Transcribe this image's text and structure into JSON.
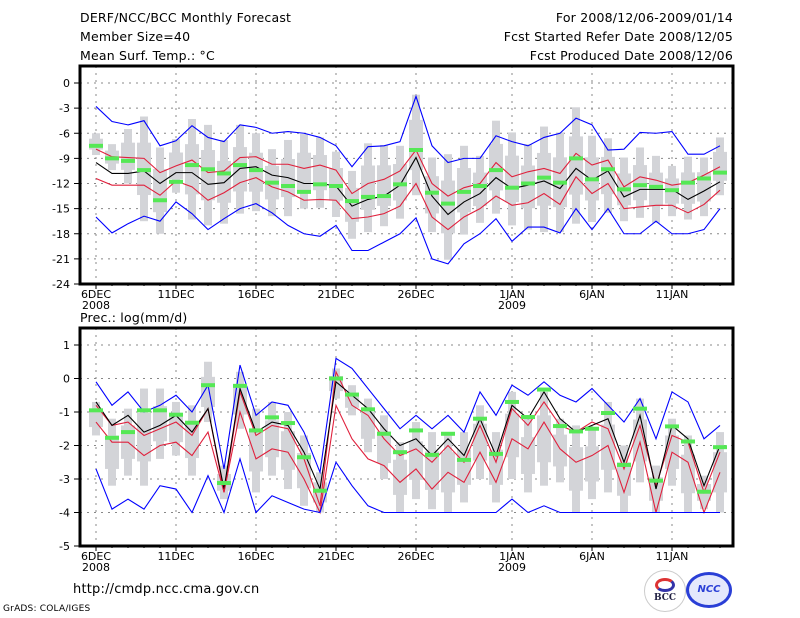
{
  "header": {
    "title": "DERF/NCC/BCC Monthly Forecast",
    "member_size": "Member Size=40",
    "variable1": "Mean Surf. Temp.: °C",
    "period": "For 2008/12/06-2009/01/14",
    "started": "Fcst Started Refer Date 2008/12/05",
    "produced": "Fcst Produced Date 2008/12/06"
  },
  "footer": {
    "url": "http://cmdp.ncc.cma.gov.cn",
    "credit": "GrADS: COLA/IGES",
    "logo1": "BCC",
    "logo2": "NCC"
  },
  "chart_data": [
    {
      "type": "line",
      "title": "Mean Surf. Temp.: °C",
      "x_ticks": [
        "6DEC",
        "11DEC",
        "16DEC",
        "21DEC",
        "26DEC",
        "1JAN",
        "6JAN",
        "11JAN"
      ],
      "x_tick_day_index": [
        0,
        5,
        10,
        15,
        20,
        26,
        31,
        36
      ],
      "x_sub_labels": [
        {
          "day_index": 0,
          "text": "2008"
        },
        {
          "day_index": 26,
          "text": "2009"
        }
      ],
      "days": 40,
      "ylim": [
        -24,
        0
      ],
      "y_ticks": [
        0,
        -3,
        -6,
        -9,
        -12,
        -15,
        -18,
        -21,
        -24
      ],
      "grid": true,
      "series": [
        {
          "name": "max",
          "color": "#0000ff",
          "values": [
            -2.8,
            -4.6,
            -5,
            -4.5,
            -7.5,
            -6.9,
            -5.1,
            -6.5,
            -7,
            -5,
            -5.3,
            -6,
            -5.8,
            -6,
            -6.5,
            -7.5,
            -10,
            -7.6,
            -7.5,
            -7,
            -1.6,
            -7.5,
            -9.5,
            -9,
            -9,
            -6.3,
            -7,
            -7.5,
            -6.5,
            -6,
            -4.2,
            -5,
            -8,
            -7.9,
            -5.9,
            -6,
            -5.8,
            -8.5,
            -8.5,
            -7.5
          ],
          "note": "upper envelope"
        },
        {
          "name": "upper-red",
          "color": "#e0203c",
          "values": [
            -7.9,
            -8.8,
            -8.9,
            -9,
            -10.7,
            -9.9,
            -9.2,
            -10.7,
            -10.5,
            -8.9,
            -8.8,
            -9.7,
            -9.7,
            -10.2,
            -9.8,
            -10.4,
            -13.2,
            -12,
            -11.5,
            -10.5,
            -8,
            -12,
            -13.5,
            -12.5,
            -12,
            -9.5,
            -11.2,
            -10.6,
            -10.2,
            -10.8,
            -8.4,
            -9.8,
            -9.2,
            -12.4,
            -11.2,
            -11.6,
            -12.2,
            -11.9,
            -11,
            -10
          ],
          "note": "upper 1-sigma"
        },
        {
          "name": "ensemble-mean",
          "color": "#000000",
          "values": [
            -9.5,
            -10.8,
            -10.8,
            -10.5,
            -12,
            -10.7,
            -10.7,
            -12.1,
            -11.9,
            -10.2,
            -10,
            -11,
            -11.3,
            -12,
            -12,
            -12.3,
            -14.7,
            -13.9,
            -13.5,
            -12.2,
            -8.9,
            -13.5,
            -15.7,
            -14.2,
            -13.2,
            -11.3,
            -12.6,
            -12.2,
            -11.7,
            -12.6,
            -10.2,
            -11.6,
            -10.5,
            -13.6,
            -12.7,
            -12.7,
            -12.7,
            -13.9,
            -12.9,
            -11.8
          ],
          "note": "ensemble mean"
        },
        {
          "name": "lower-red",
          "color": "#e0203c",
          "values": [
            -11.4,
            -12.2,
            -12.2,
            -12.2,
            -13.4,
            -11.7,
            -12.4,
            -14,
            -13.1,
            -11.9,
            -11.3,
            -12.4,
            -13,
            -14,
            -13.9,
            -14,
            -16.2,
            -16,
            -15.6,
            -14.7,
            -12,
            -16,
            -17.5,
            -16,
            -15,
            -13.5,
            -14.6,
            -14.3,
            -13.2,
            -14.5,
            -11.2,
            -13.2,
            -12,
            -15,
            -14.8,
            -14.6,
            -14.6,
            -15.5,
            -14.5,
            -12.8
          ],
          "note": "lower 1-sigma"
        },
        {
          "name": "min",
          "color": "#0000ff",
          "values": [
            -16,
            -17.9,
            -16.8,
            -15.9,
            -16.5,
            -14.2,
            -15.6,
            -17.5,
            -16.2,
            -15,
            -14.4,
            -15.5,
            -17,
            -18,
            -18.3,
            -17,
            -20,
            -20,
            -19,
            -18,
            -16.1,
            -21,
            -21.6,
            -19.2,
            -18,
            -16.2,
            -18.9,
            -17.2,
            -17.2,
            -17.9,
            -15,
            -17.5,
            -15,
            -18,
            -18,
            -16.5,
            -18,
            -18,
            -17.5,
            -15
          ],
          "note": "lower envelope"
        }
      ],
      "observed_green": [
        -7.5,
        -9,
        -9.3,
        -10.4,
        -14,
        -11.8,
        -9.8,
        -10.3,
        -10.8,
        -9.8,
        -10.4,
        -11.9,
        -12.3,
        -13,
        -12.1,
        -12.3,
        -14.1,
        -13.6,
        -13.5,
        -12.1,
        -8,
        -13.1,
        -14.4,
        -13,
        -12.3,
        -10.4,
        -12.5,
        -12,
        -11.3,
        -11.9,
        -9,
        -11.5,
        -10.3,
        -12.7,
        -12.2,
        -12.4,
        -12.8,
        -11.9,
        -11.4,
        -10.7
      ],
      "box_ranges": [
        [
          -8.6,
          -6
        ],
        [
          -10.4,
          -7.3
        ],
        [
          -12,
          -5.5
        ],
        [
          -16.5,
          -4
        ],
        [
          -18,
          -7.7
        ],
        [
          -13.1,
          -6.7
        ],
        [
          -16.3,
          -4.3
        ],
        [
          -17,
          -5
        ],
        [
          -16.8,
          -6.8
        ],
        [
          -15.6,
          -5
        ],
        [
          -15.3,
          -6
        ],
        [
          -15.9,
          -7.9
        ],
        [
          -15.9,
          -6.8
        ],
        [
          -15,
          -6.1
        ],
        [
          -14.9,
          -6.5
        ],
        [
          -16,
          -8.2
        ],
        [
          -18.6,
          -10.5
        ],
        [
          -17.8,
          -7.2
        ],
        [
          -17.1,
          -7.4
        ],
        [
          -16.2,
          -7.5
        ],
        [
          -13.4,
          -1.4
        ],
        [
          -17.8,
          -8.9
        ],
        [
          -21.1,
          -8.5
        ],
        [
          -18.1,
          -7.5
        ],
        [
          -16.7,
          -8.7
        ],
        [
          -15.6,
          -4.5
        ],
        [
          -17,
          -5.9
        ],
        [
          -17.5,
          -7.3
        ],
        [
          -17.8,
          -5.2
        ],
        [
          -17.8,
          -5.9
        ],
        [
          -16.8,
          -2.9
        ],
        [
          -16.6,
          -6.3
        ],
        [
          -15.5,
          -6.6
        ],
        [
          -16.5,
          -8.9
        ],
        [
          -16.1,
          -7.7
        ],
        [
          -16.7,
          -8.7
        ],
        [
          -15.9,
          -9.9
        ],
        [
          -16.3,
          -8.8
        ],
        [
          -15.9,
          -8.9
        ],
        [
          -13.4,
          -6.5
        ]
      ]
    },
    {
      "type": "line",
      "title": "Prec.: log(mm/d)",
      "x_ticks": [
        "6DEC",
        "11DEC",
        "16DEC",
        "21DEC",
        "26DEC",
        "1JAN",
        "6JAN",
        "11JAN"
      ],
      "x_tick_day_index": [
        0,
        5,
        10,
        15,
        20,
        26,
        31,
        36
      ],
      "x_sub_labels": [
        {
          "day_index": 0,
          "text": "2008"
        },
        {
          "day_index": 26,
          "text": "2009"
        }
      ],
      "days": 40,
      "ylim": [
        -5,
        1.4
      ],
      "y_ticks": [
        1,
        0,
        -1,
        -2,
        -3,
        -4,
        -5
      ],
      "grid": true,
      "series": [
        {
          "name": "max",
          "color": "#0000ff",
          "values": [
            -0.1,
            -0.8,
            -0.4,
            -1,
            -0.8,
            -0.5,
            -1,
            -0.2,
            -2.7,
            0.4,
            -1.1,
            -0.7,
            -0.8,
            -1.6,
            -2.8,
            0.6,
            0.3,
            -0.3,
            -0.9,
            -1.5,
            -1.1,
            -1.5,
            -1.1,
            -1.6,
            -0.4,
            -1.1,
            -0.2,
            -0.5,
            -0.1,
            -0.5,
            -0.7,
            -0.3,
            -0.8,
            -1.3,
            -0.6,
            -1.8,
            -0.4,
            -0.7,
            -1.8,
            -1.4
          ],
          "note": "upper envelope"
        },
        {
          "name": "upper-red",
          "color": "#e0203c",
          "values": [
            -0.8,
            -1.4,
            -1.3,
            -1.7,
            -1.5,
            -1.3,
            -1.7,
            -0.9,
            -3.4,
            -0.4,
            -1.7,
            -1.4,
            -1.5,
            -2.4,
            -3.8,
            0.2,
            -0.8,
            -1.1,
            -1.8,
            -2.3,
            -2.1,
            -2.5,
            -2,
            -2.5,
            -1.4,
            -2.5,
            -0.9,
            -1.4,
            -0.7,
            -1.4,
            -1.6,
            -1.3,
            -1.5,
            -2.7,
            -1.4,
            -3.2,
            -1.7,
            -1.9,
            -3.4,
            -2.2
          ],
          "note": "upper 1-sigma"
        },
        {
          "name": "ensemble-mean",
          "color": "#000000",
          "values": [
            -0.7,
            -1.4,
            -1.1,
            -1.6,
            -1.4,
            -1.1,
            -1.6,
            -0.9,
            -3.3,
            -0.3,
            -1.6,
            -1.3,
            -1.4,
            -2.2,
            -3.3,
            -0.1,
            -0.5,
            -0.9,
            -1.5,
            -2,
            -1.8,
            -2.3,
            -1.8,
            -2.3,
            -1.2,
            -2.3,
            -0.8,
            -1.2,
            -0.4,
            -1.2,
            -1.6,
            -1.4,
            -1.2,
            -2.5,
            -1.1,
            -3.3,
            -1.4,
            -1.8,
            -3.2,
            -2
          ],
          "note": "ensemble mean"
        },
        {
          "name": "lower-red",
          "color": "#e0203c",
          "values": [
            -1.3,
            -1.9,
            -1.9,
            -2.3,
            -2,
            -1.9,
            -2.3,
            -1.6,
            -3.4,
            -1,
            -2.4,
            -2.1,
            -2.2,
            -3,
            -4,
            -0.8,
            -1.8,
            -2.4,
            -2.6,
            -3.1,
            -2.7,
            -3.3,
            -2.8,
            -3.1,
            -2.2,
            -3.1,
            -1.8,
            -2.1,
            -1.3,
            -2.1,
            -2.5,
            -2.3,
            -2,
            -3.4,
            -1.9,
            -4,
            -2.2,
            -2.5,
            -4,
            -2.8
          ],
          "note": "lower 1-sigma"
        },
        {
          "name": "min",
          "color": "#0000ff",
          "values": [
            -2.7,
            -3.9,
            -3.6,
            -3.9,
            -3.2,
            -3.3,
            -4,
            -2.9,
            -4,
            -2.4,
            -4,
            -3.5,
            -3.7,
            -3.9,
            -4,
            -2.5,
            -3.2,
            -3.8,
            -4,
            -4,
            -4,
            -4,
            -4,
            -4,
            -4,
            -4,
            -3.6,
            -4,
            -3.8,
            -4,
            -4,
            -4,
            -4,
            -4,
            -4,
            -4,
            -4,
            -4,
            -4,
            -4
          ],
          "note": "lower envelope"
        }
      ],
      "observed_green": [
        -0.95,
        -1.77,
        -1.6,
        -0.95,
        -0.95,
        -1.08,
        -1.32,
        -0.2,
        -3.12,
        -0.22,
        -1.55,
        -1.16,
        -1.33,
        -2.35,
        -3.35,
        0,
        -0.48,
        -0.92,
        -1.65,
        -2.2,
        -1.55,
        -2.28,
        -1.65,
        -2.43,
        -1.2,
        -2.25,
        -0.7,
        -1.15,
        -0.33,
        -1.42,
        -1.58,
        -1.5,
        -1.03,
        -2.58,
        -0.9,
        -3.05,
        -1.43,
        -1.88,
        -3.38,
        -2.05
      ],
      "box_ranges": [
        [
          -1.7,
          -0.7
        ],
        [
          -3.2,
          -1.2
        ],
        [
          -2.9,
          -0.9
        ],
        [
          -3.2,
          -0.3
        ],
        [
          -2.4,
          -0.3
        ],
        [
          -2.3,
          -0.7
        ],
        [
          -2.9,
          -0.8
        ],
        [
          -1.3,
          0.5
        ],
        [
          -3.6,
          -2.6
        ],
        [
          -1.5,
          0.2
        ],
        [
          -3.4,
          -0.9
        ],
        [
          -2.9,
          -0.7
        ],
        [
          -3.3,
          -1
        ],
        [
          -3.8,
          -1.7
        ],
        [
          -4,
          -2.8
        ],
        [
          -0.6,
          0.3
        ],
        [
          -1.1,
          -0.2
        ],
        [
          -2.2,
          -0.6
        ],
        [
          -3,
          -1.1
        ],
        [
          -4,
          -1.9
        ],
        [
          -3.6,
          -1.3
        ],
        [
          -3.9,
          -1.6
        ],
        [
          -4,
          -1.6
        ],
        [
          -3.7,
          -1.6
        ],
        [
          -3,
          -0.8
        ],
        [
          -3.7,
          -1.6
        ],
        [
          -3,
          -0.4
        ],
        [
          -3.4,
          -1.2
        ],
        [
          -3.2,
          -0.4
        ],
        [
          -3.1,
          -1.2
        ],
        [
          -4,
          -1.4
        ],
        [
          -3.6,
          -1.5
        ],
        [
          -3.4,
          -0.7
        ],
        [
          -4,
          -2
        ],
        [
          -3.1,
          -0.6
        ],
        [
          -4,
          -2.6
        ],
        [
          -3.2,
          -1.2
        ],
        [
          -4,
          -1.7
        ],
        [
          -3.9,
          -2.9
        ],
        [
          -4,
          -1.6
        ]
      ]
    }
  ]
}
